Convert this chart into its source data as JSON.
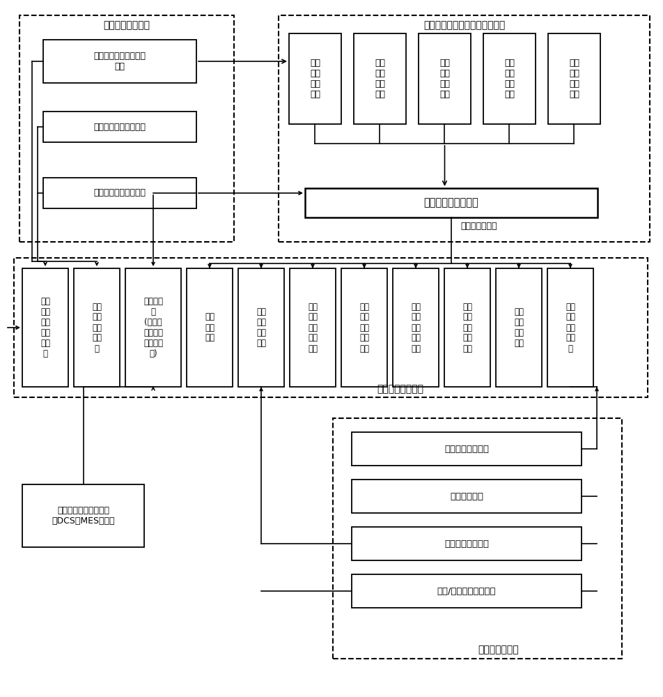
{
  "bg_color": "#ffffff",
  "subsystem1_label": "流程图交互子系统",
  "subsystem2_label": "设备全生命周期设备管理子系统",
  "db_files_label": "数据库及数据文件",
  "config_label": "配置管理子系统",
  "module1_text": "流程图和设备信息交互\n模块",
  "module2_text": "流程图绘制及管理模块",
  "module3_text": "设备实时状态监控模块",
  "lifecycle_modules": [
    "基本\n信息\n管理\n模块",
    "故障\n信息\n管理\n模块",
    "维修\n信息\n管理\n模块",
    "维护\n信息\n管理\n模块",
    "备件\n信息\n管理\n模块"
  ],
  "db_control_text": "数据库访问控制模块",
  "crud_text": "增、删、查、改",
  "bottom_row_labels": [
    "矢量\n工艺\n流程\n图静\n态文\n件",
    "矢量\n图元\n库静\n态文\n件",
    "实时数据\n库\n(设备运\n行状态信\n息数据库\n表)",
    "操作\n日志\n文件",
    "系统\n参数\n配置\n文件",
    "设备\n基本\n信息\n数据\n库表",
    "设备\n故障\n信息\n数据\n库表",
    "设备\n维修\n信息\n数据\n库表",
    "设备\n维护\n信息\n数据\n库表",
    "备件\n信息\n数据\n库表",
    "用户\n及权\n限数\n据库\n表"
  ],
  "config_modules": [
    "用户信息管理模块",
    "权限管理模块",
    "系统参数设置模块",
    "备份/还原系统数据模块"
  ],
  "dcs_text": "设备运行状态采集系统\n（DCS或MES系统）"
}
